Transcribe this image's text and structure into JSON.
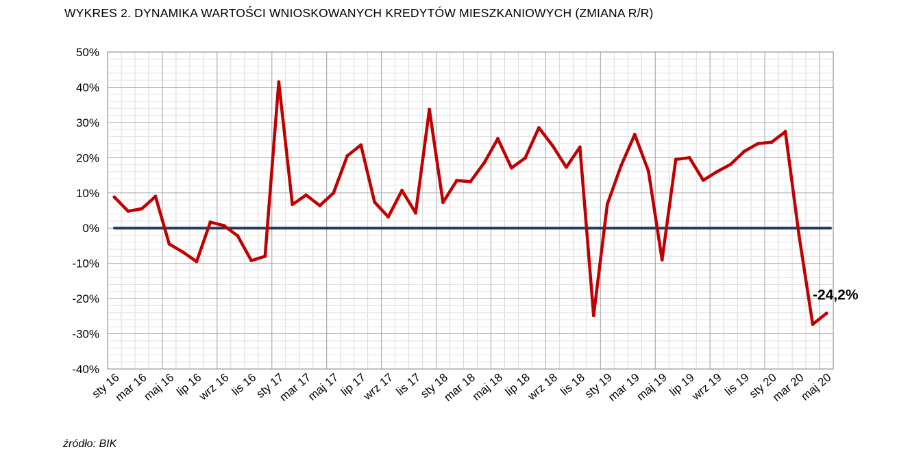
{
  "chart_data": {
    "type": "line",
    "title": "WYKRES 2. DYNAMIKA WARTOŚCI WNIOSKOWANYCH KREDYTÓW MIESZKANIOWYCH (ZMIANA R/R)",
    "xlabel": "",
    "ylabel": "",
    "ylim": [
      -40,
      50
    ],
    "y_ticks": [
      50,
      40,
      30,
      20,
      10,
      0,
      -10,
      -20,
      -30,
      -40
    ],
    "y_tick_labels": [
      "50%",
      "40%",
      "30%",
      "20%",
      "10%",
      "0%",
      "-10%",
      "-20%",
      "-30%",
      "-40%"
    ],
    "x_tick_labels": [
      "sty 16",
      "mar 16",
      "maj 16",
      "lip 16",
      "wrz 16",
      "lis 16",
      "sty 17",
      "mar 17",
      "maj 17",
      "lip 17",
      "wrz 17",
      "lis 17",
      "sty 18",
      "mar 18",
      "maj 18",
      "lip 18",
      "wrz 18",
      "lis 18",
      "sty 19",
      "mar 19",
      "maj 19",
      "lip 19",
      "wrz 19",
      "lis 19",
      "sty 20",
      "mar 20",
      "maj 20"
    ],
    "grid": true,
    "legend": "none",
    "reference_line": {
      "y": 0,
      "color": "#1f3864"
    },
    "series": [
      {
        "color": "#c00000",
        "values": [
          8.8,
          4.8,
          5.5,
          9.0,
          -4.5,
          -6.8,
          -9.5,
          1.7,
          0.7,
          -2.2,
          -9.2,
          -8.0,
          41.5,
          6.7,
          9.4,
          6.4,
          10.0,
          20.5,
          23.6,
          7.4,
          3.2,
          10.7,
          4.3,
          33.7,
          7.3,
          13.5,
          13.2,
          18.5,
          25.4,
          17.1,
          19.9,
          28.5,
          23.4,
          17.3,
          23.0,
          -24.8,
          6.8,
          17.7,
          26.6,
          16.2,
          -9.0,
          19.5,
          20.0,
          13.6,
          16.0,
          18.1,
          21.8,
          24.0,
          24.4,
          27.4,
          -2.0,
          -27.3,
          -24.2
        ]
      }
    ],
    "annotations": [
      {
        "label": "-24,2%",
        "index": 52
      }
    ]
  },
  "source": "źródło: BIK"
}
